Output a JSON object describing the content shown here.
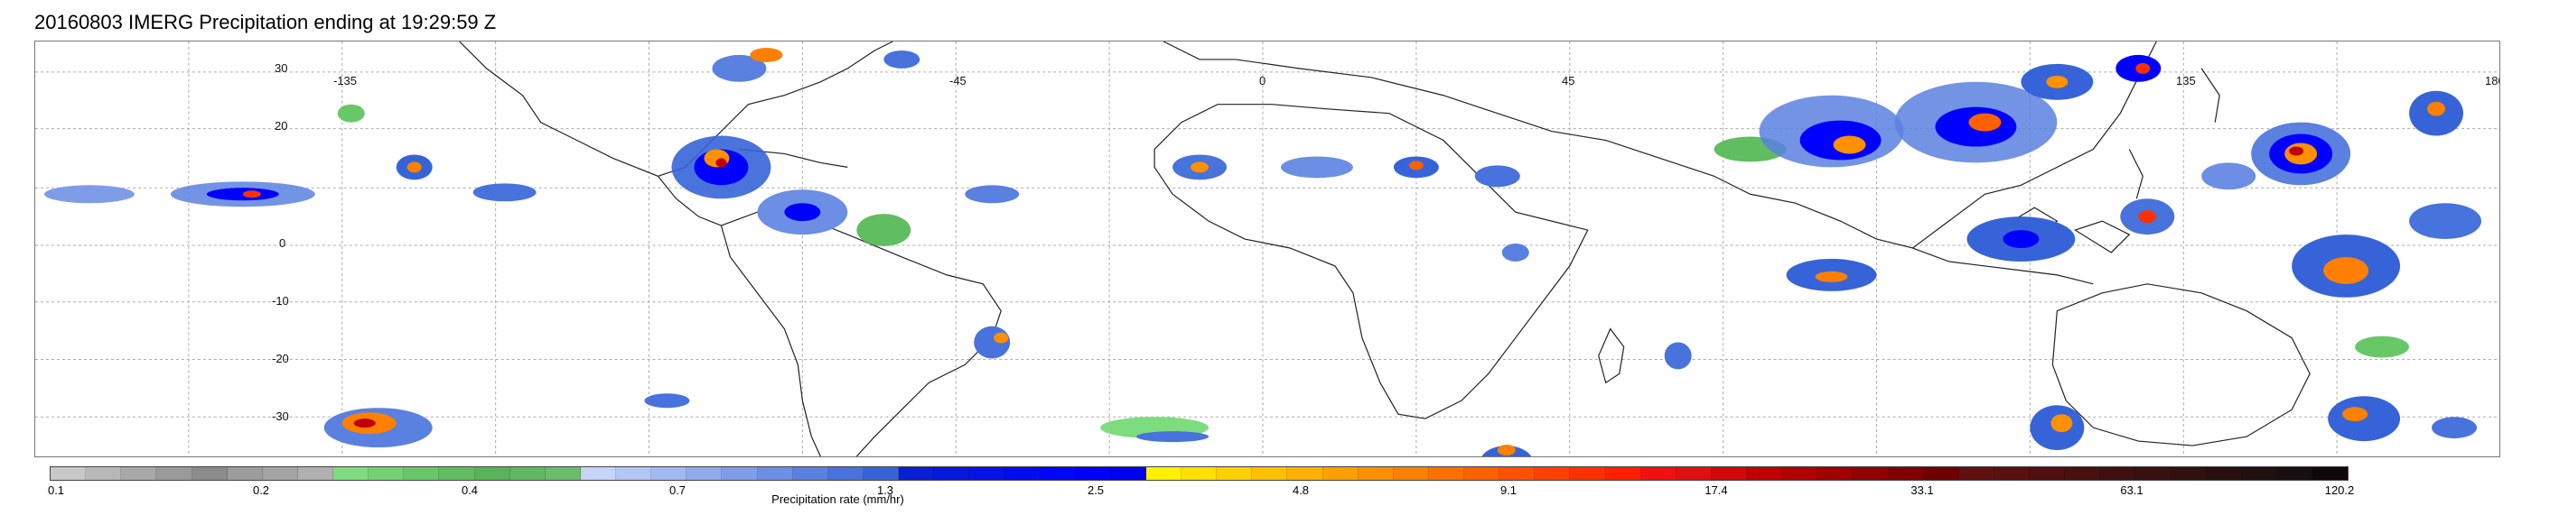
{
  "title": "20160803 IMERG Precipitation ending at 19:29:59 Z",
  "map": {
    "longitude_labels": [
      "-135",
      "-45",
      "0",
      "45",
      "135",
      "180"
    ],
    "latitude_labels": [
      "30",
      "20",
      "0",
      "-10",
      "-20",
      "-30"
    ]
  },
  "colorbar": {
    "caption": "Precipitation rate (mm/hr)",
    "tick_labels": [
      "0.1",
      "0.2",
      "0.4",
      "0.7",
      "1.3",
      "2.5",
      "4.8",
      "9.1",
      "17.4",
      "33.1",
      "63.1",
      "120.2"
    ],
    "colors": [
      "#c8c8c8",
      "#b8b8b8",
      "#a8a8a8",
      "#9a9a9a",
      "#8c8c8c",
      "#9c9c9c",
      "#a4a4a4",
      "#b0b0b0",
      "#7ddc7d",
      "#72d272",
      "#68c868",
      "#60bd60",
      "#58b358",
      "#62b862",
      "#6bbd6b",
      "#c6d4f8",
      "#b4c6f4",
      "#a2b8f0",
      "#90aaec",
      "#7e9ce8",
      "#6c8ee4",
      "#5a80e0",
      "#4872dc",
      "#3664d8",
      "#0a1ed2",
      "#0818dc",
      "#0612e6",
      "#040cf0",
      "#0206f8",
      "#0000ff",
      "#0000f0",
      "#fff000",
      "#ffe000",
      "#ffd000",
      "#ffc000",
      "#ffb000",
      "#ffa000",
      "#ff9000",
      "#ff8000",
      "#ff7000",
      "#ff6000",
      "#ff5000",
      "#ff4000",
      "#ff3000",
      "#ff2000",
      "#f01010",
      "#e01010",
      "#d00808",
      "#c00000",
      "#b00000",
      "#a00000",
      "#900000",
      "#800000",
      "#700000",
      "#601010",
      "#581010",
      "#501010",
      "#481010",
      "#401010",
      "#381010",
      "#301010",
      "#281010",
      "#201010",
      "#181010",
      "#100808"
    ]
  }
}
